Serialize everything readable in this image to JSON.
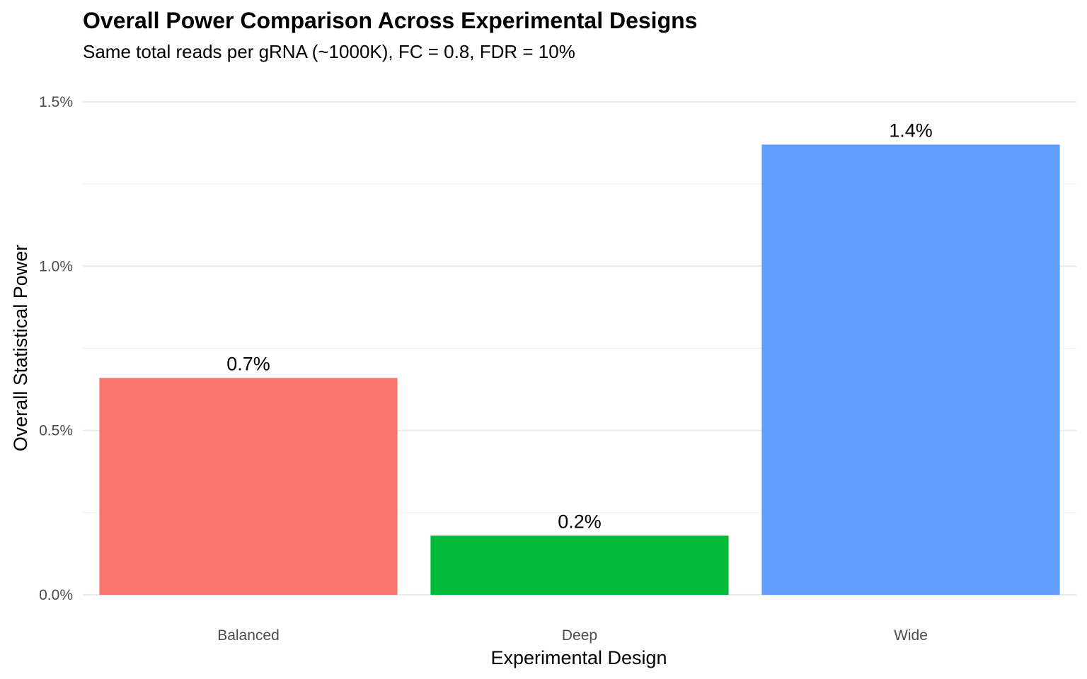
{
  "chart_data": {
    "type": "bar",
    "title": "Overall Power Comparison Across Experimental Designs",
    "subtitle": "Same total reads per gRNA (~1000K), FC = 0.8, FDR = 10%",
    "xlabel": "Experimental Design",
    "ylabel": "Overall Statistical Power",
    "categories": [
      "Balanced",
      "Deep",
      "Wide"
    ],
    "values": [
      0.66,
      0.18,
      1.37
    ],
    "value_unit": "percent",
    "data_labels": [
      "0.7%",
      "0.2%",
      "1.4%"
    ],
    "colors": [
      "#F8766D",
      "#00BA38",
      "#619CFF"
    ],
    "ylim": [
      0,
      1.5
    ],
    "yticks": [
      0,
      0.5,
      1.0,
      1.5
    ],
    "ytick_labels": [
      "0.0%",
      "0.5%",
      "1.0%",
      "1.5%"
    ],
    "grid": true,
    "legend": "none"
  }
}
